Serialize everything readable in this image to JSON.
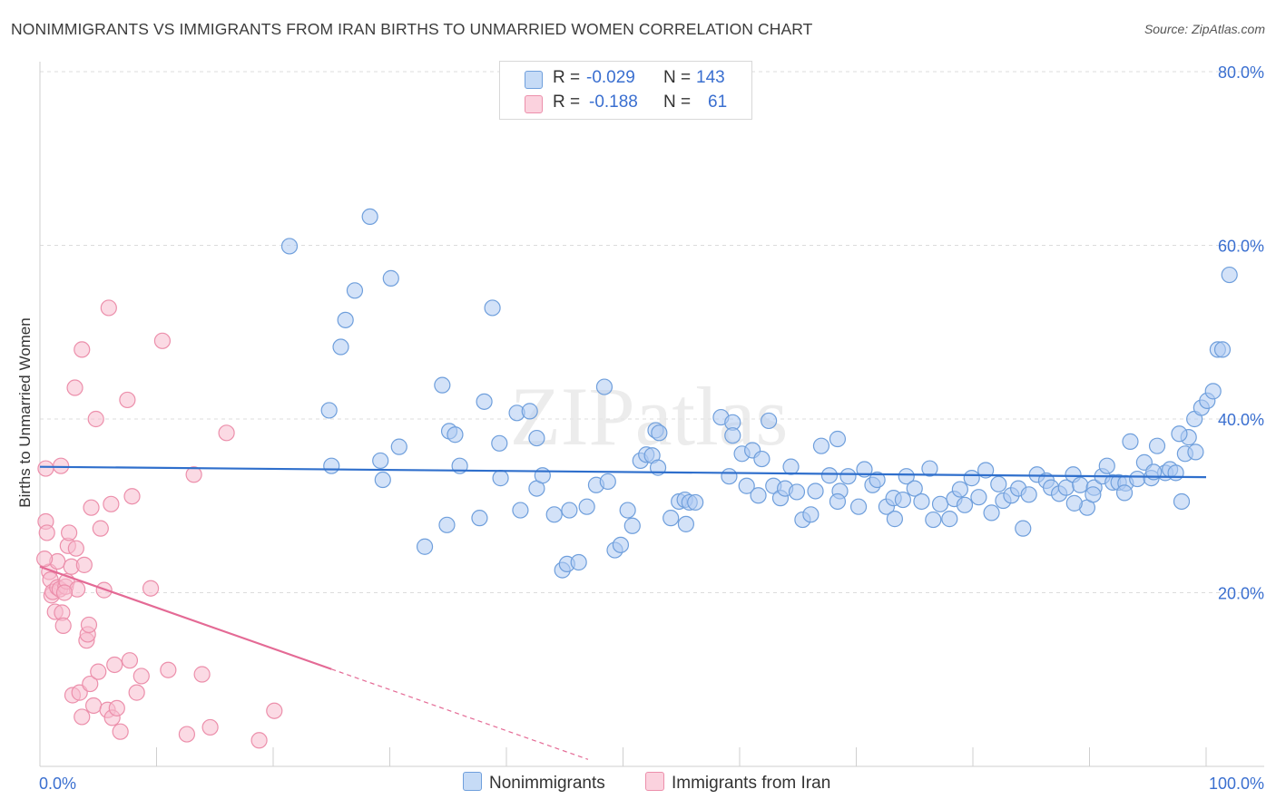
{
  "title": "NONIMMIGRANTS VS IMMIGRANTS FROM IRAN BIRTHS TO UNMARRIED WOMEN CORRELATION CHART",
  "source": "Source: ZipAtlas.com",
  "watermark": "ZIPatlas",
  "colors": {
    "blue_fill": "#aecbf2",
    "blue_stroke": "#6f9fdc",
    "blue_line": "#2f6fcc",
    "pink_fill": "#f7bccd",
    "pink_stroke": "#ec8fab",
    "pink_line": "#e46a95",
    "axis_text": "#3a6fd0"
  },
  "legend": {
    "r_label": "R =",
    "n_label": "N =",
    "series1": {
      "r": "-0.029",
      "n": "143"
    },
    "series2": {
      "r": "-0.188",
      "n": "61"
    }
  },
  "chart_data": {
    "type": "scatter",
    "title": "NONIMMIGRANTS VS IMMIGRANTS FROM IRAN BIRTHS TO UNMARRIED WOMEN CORRELATION CHART",
    "xlabel": "",
    "ylabel": "Births to Unmarried Women",
    "xlim": [
      0,
      100
    ],
    "ylim": [
      0,
      80
    ],
    "x_tick_labels": [
      "0.0%",
      "100.0%"
    ],
    "y_tick_labels": [
      "20.0%",
      "40.0%",
      "60.0%",
      "80.0%"
    ],
    "y_ticks": [
      20,
      40,
      60,
      80
    ],
    "legend_position": "bottom",
    "series": [
      {
        "name": "Nonimmigrants",
        "r": -0.029,
        "n": 143,
        "trend": {
          "x": [
            0,
            100
          ],
          "y": [
            34.5,
            33.3
          ]
        },
        "points": [
          [
            21.4,
            59.9
          ],
          [
            28.3,
            63.3
          ],
          [
            27.0,
            54.8
          ],
          [
            26.2,
            51.4
          ],
          [
            25.8,
            48.3
          ],
          [
            30.1,
            56.2
          ],
          [
            38.8,
            52.8
          ],
          [
            24.8,
            41.0
          ],
          [
            25.0,
            34.6
          ],
          [
            29.2,
            35.2
          ],
          [
            29.4,
            33.0
          ],
          [
            30.8,
            36.8
          ],
          [
            35.1,
            38.6
          ],
          [
            35.6,
            38.2
          ],
          [
            34.5,
            43.9
          ],
          [
            36.0,
            34.6
          ],
          [
            38.1,
            42.0
          ],
          [
            39.4,
            37.2
          ],
          [
            39.5,
            33.2
          ],
          [
            40.9,
            40.7
          ],
          [
            42.0,
            40.9
          ],
          [
            42.6,
            37.8
          ],
          [
            41.2,
            29.5
          ],
          [
            42.6,
            32.0
          ],
          [
            33.0,
            25.3
          ],
          [
            34.9,
            27.8
          ],
          [
            37.7,
            28.6
          ],
          [
            43.1,
            33.5
          ],
          [
            44.1,
            29.0
          ],
          [
            44.8,
            22.6
          ],
          [
            45.2,
            23.3
          ],
          [
            45.4,
            29.5
          ],
          [
            46.2,
            23.5
          ],
          [
            46.9,
            29.9
          ],
          [
            47.7,
            32.4
          ],
          [
            48.4,
            43.7
          ],
          [
            48.7,
            32.8
          ],
          [
            49.3,
            24.9
          ],
          [
            49.8,
            25.5
          ],
          [
            50.4,
            29.5
          ],
          [
            50.8,
            27.7
          ],
          [
            51.5,
            35.2
          ],
          [
            52.0,
            35.9
          ],
          [
            52.5,
            35.8
          ],
          [
            52.8,
            38.7
          ],
          [
            53.0,
            34.4
          ],
          [
            53.1,
            38.4
          ],
          [
            54.1,
            28.6
          ],
          [
            54.8,
            30.5
          ],
          [
            55.3,
            30.7
          ],
          [
            55.4,
            27.9
          ],
          [
            55.7,
            30.4
          ],
          [
            56.2,
            30.4
          ],
          [
            58.4,
            40.2
          ],
          [
            59.1,
            33.4
          ],
          [
            59.4,
            39.6
          ],
          [
            59.4,
            38.1
          ],
          [
            60.2,
            36.0
          ],
          [
            60.6,
            32.3
          ],
          [
            61.1,
            36.4
          ],
          [
            61.6,
            31.2
          ],
          [
            61.9,
            35.4
          ],
          [
            62.5,
            39.8
          ],
          [
            62.9,
            32.3
          ],
          [
            63.5,
            30.9
          ],
          [
            63.9,
            32.0
          ],
          [
            64.4,
            34.5
          ],
          [
            64.9,
            31.6
          ],
          [
            65.4,
            28.4
          ],
          [
            66.1,
            29.0
          ],
          [
            66.5,
            31.7
          ],
          [
            67.0,
            36.9
          ],
          [
            67.7,
            33.5
          ],
          [
            68.4,
            37.7
          ],
          [
            68.6,
            31.7
          ],
          [
            69.3,
            33.4
          ],
          [
            70.2,
            29.9
          ],
          [
            70.7,
            34.2
          ],
          [
            71.4,
            32.4
          ],
          [
            71.8,
            33.0
          ],
          [
            72.6,
            29.9
          ],
          [
            73.2,
            30.9
          ],
          [
            74.0,
            30.7
          ],
          [
            74.3,
            33.4
          ],
          [
            75.0,
            32.0
          ],
          [
            75.6,
            30.5
          ],
          [
            76.3,
            34.3
          ],
          [
            76.6,
            28.4
          ],
          [
            77.2,
            30.2
          ],
          [
            78.0,
            28.5
          ],
          [
            78.4,
            30.8
          ],
          [
            78.9,
            31.9
          ],
          [
            79.3,
            30.1
          ],
          [
            79.9,
            33.2
          ],
          [
            80.5,
            31.0
          ],
          [
            81.1,
            34.1
          ],
          [
            81.6,
            29.2
          ],
          [
            82.2,
            32.5
          ],
          [
            82.6,
            30.6
          ],
          [
            83.3,
            31.2
          ],
          [
            83.9,
            32.0
          ],
          [
            84.3,
            27.4
          ],
          [
            84.8,
            31.3
          ],
          [
            85.5,
            33.6
          ],
          [
            86.3,
            32.9
          ],
          [
            86.7,
            32.1
          ],
          [
            87.4,
            31.4
          ],
          [
            88.0,
            32.1
          ],
          [
            88.6,
            33.6
          ],
          [
            89.2,
            32.4
          ],
          [
            89.8,
            29.8
          ],
          [
            90.4,
            32.1
          ],
          [
            91.1,
            33.4
          ],
          [
            91.5,
            34.6
          ],
          [
            92.0,
            32.7
          ],
          [
            92.5,
            32.7
          ],
          [
            93.1,
            32.6
          ],
          [
            93.5,
            37.4
          ],
          [
            94.1,
            33.1
          ],
          [
            94.7,
            35.0
          ],
          [
            95.3,
            33.2
          ],
          [
            95.8,
            36.9
          ],
          [
            96.5,
            33.8
          ],
          [
            96.9,
            34.2
          ],
          [
            97.4,
            33.8
          ],
          [
            97.9,
            30.5
          ],
          [
            98.5,
            37.9
          ],
          [
            99.0,
            40.0
          ],
          [
            99.6,
            41.3
          ],
          [
            100.1,
            42.1
          ],
          [
            100.6,
            43.2
          ],
          [
            101.0,
            48.0
          ],
          [
            101.4,
            48.0
          ],
          [
            102.0,
            56.6
          ],
          [
            97.7,
            38.3
          ],
          [
            98.2,
            36.0
          ],
          [
            99.1,
            36.2
          ],
          [
            95.5,
            33.9
          ],
          [
            68.4,
            30.5
          ],
          [
            73.3,
            28.5
          ],
          [
            88.7,
            30.3
          ],
          [
            90.3,
            31.3
          ],
          [
            93.0,
            31.5
          ]
        ]
      },
      {
        "name": "Immigrants from Iran",
        "r": -0.188,
        "n": 61,
        "trend": {
          "x": [
            0,
            25
          ],
          "y": [
            23.0,
            11.2
          ]
        },
        "trend_dashed": {
          "x": [
            25,
            47
          ],
          "y": [
            11.2,
            0.8
          ]
        },
        "points": [
          [
            0.5,
            34.3
          ],
          [
            0.5,
            28.2
          ],
          [
            0.6,
            26.9
          ],
          [
            0.8,
            22.4
          ],
          [
            0.9,
            21.5
          ],
          [
            1.0,
            19.7
          ],
          [
            1.1,
            20.1
          ],
          [
            1.3,
            17.8
          ],
          [
            1.5,
            23.6
          ],
          [
            1.5,
            20.6
          ],
          [
            1.7,
            20.4
          ],
          [
            1.8,
            34.6
          ],
          [
            1.9,
            17.7
          ],
          [
            2.0,
            16.2
          ],
          [
            2.2,
            20.7
          ],
          [
            2.3,
            21.3
          ],
          [
            2.4,
            25.4
          ],
          [
            2.5,
            26.9
          ],
          [
            2.7,
            23.0
          ],
          [
            2.8,
            8.2
          ],
          [
            3.0,
            43.6
          ],
          [
            3.1,
            25.1
          ],
          [
            3.2,
            20.4
          ],
          [
            3.4,
            8.5
          ],
          [
            3.6,
            48.0
          ],
          [
            3.6,
            5.7
          ],
          [
            3.8,
            23.2
          ],
          [
            4.0,
            14.5
          ],
          [
            4.1,
            15.2
          ],
          [
            4.2,
            16.3
          ],
          [
            4.3,
            9.5
          ],
          [
            4.4,
            29.8
          ],
          [
            4.6,
            7.0
          ],
          [
            4.8,
            40.0
          ],
          [
            5.0,
            10.9
          ],
          [
            5.2,
            27.4
          ],
          [
            5.5,
            20.3
          ],
          [
            5.8,
            6.5
          ],
          [
            5.9,
            52.8
          ],
          [
            6.1,
            30.2
          ],
          [
            6.2,
            5.6
          ],
          [
            6.4,
            11.7
          ],
          [
            6.6,
            6.7
          ],
          [
            6.9,
            4.0
          ],
          [
            7.5,
            42.2
          ],
          [
            7.7,
            12.2
          ],
          [
            7.9,
            31.1
          ],
          [
            8.3,
            8.5
          ],
          [
            8.7,
            10.4
          ],
          [
            9.5,
            20.5
          ],
          [
            10.5,
            49.0
          ],
          [
            11.0,
            11.1
          ],
          [
            12.6,
            3.7
          ],
          [
            13.2,
            33.6
          ],
          [
            13.9,
            10.6
          ],
          [
            14.6,
            4.5
          ],
          [
            16.0,
            38.4
          ],
          [
            18.8,
            3.0
          ],
          [
            20.1,
            6.4
          ],
          [
            0.4,
            23.9
          ],
          [
            2.1,
            20.0
          ]
        ]
      }
    ]
  },
  "bottom_legend": [
    "Nonimmigrants",
    "Immigrants from Iran"
  ]
}
